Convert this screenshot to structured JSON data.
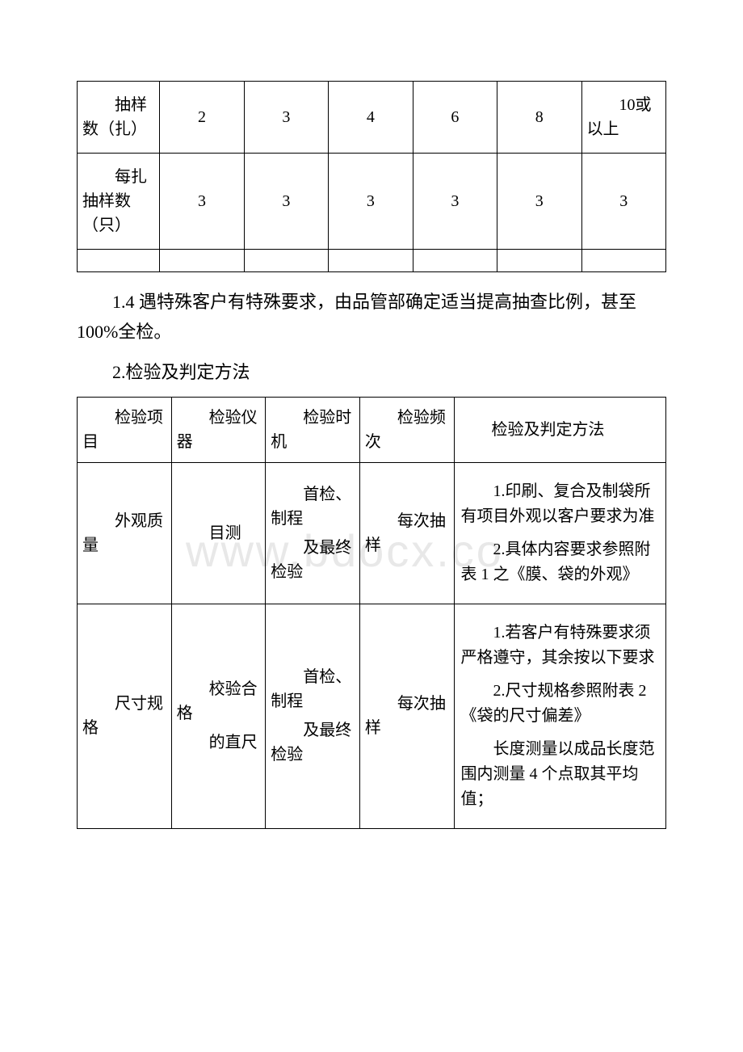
{
  "watermark": "www.bdocx.co",
  "table1": {
    "row1_label": "抽样数（扎）",
    "row1_vals": [
      "2",
      "3",
      "4",
      "6",
      "8"
    ],
    "row1_last": "10或以上",
    "row2_label": "每扎抽样数（只）",
    "row2_vals": [
      "3",
      "3",
      "3",
      "3",
      "3",
      "3"
    ]
  },
  "paragraphs": {
    "p1": "1.4 遇特殊客户有特殊要求，由品管部确定适当提高抽查比例，甚至 100%全检。",
    "p2": "2.检验及判定方法"
  },
  "table2": {
    "headers": {
      "item": "检验项目",
      "instrument": "检验仪器",
      "timing": "检验时机",
      "frequency": "检验频次",
      "method": "检验及判定方法"
    },
    "rows": [
      {
        "item": "外观质量",
        "instrument": "目测",
        "timing1": "首检、制程",
        "timing2": "及最终检验",
        "frequency": "每次抽样",
        "methods": [
          "1.印刷、复合及制袋所有项目外观以客户要求为准",
          "2.具体内容要求参照附表 1 之《膜、袋的外观》"
        ]
      },
      {
        "item": "尺寸规格",
        "instrument1": "校验合格",
        "instrument2": "的直尺",
        "timing1": "首检、制程",
        "timing2": "及最终检验",
        "frequency": "每次抽样",
        "methods": [
          "1.若客户有特殊要求须严格遵守，其余按以下要求",
          "2.尺寸规格参照附表 2《袋的尺寸偏差》",
          "长度测量以成品长度范围内测量 4 个点取其平均值；"
        ]
      }
    ]
  }
}
